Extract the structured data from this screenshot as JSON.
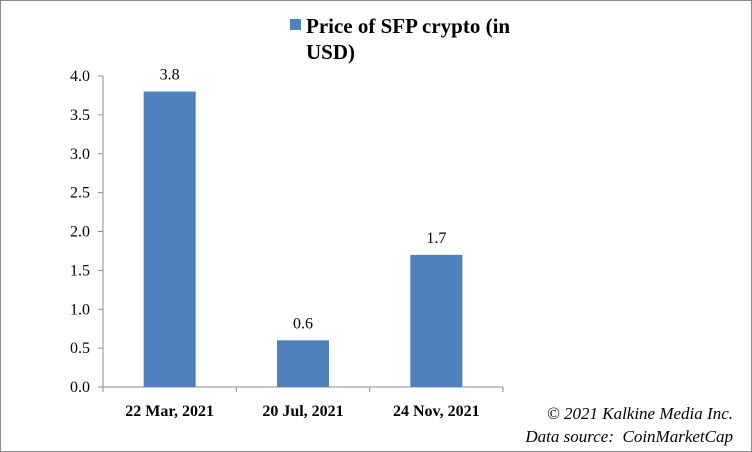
{
  "chart_data": {
    "type": "bar",
    "title": "",
    "xlabel": "",
    "ylabel": "",
    "categories": [
      "22 Mar, 2021",
      "20 Jul, 2021",
      "24 Nov, 2021"
    ],
    "series": [
      {
        "name": "Price of SFP crypto (in USD)",
        "values": [
          3.8,
          0.6,
          1.7
        ],
        "data_labels": [
          "3.8",
          "0.6",
          "1.7"
        ],
        "color": "#4f81bd"
      }
    ],
    "ylim": [
      0,
      4.0
    ],
    "yticks": [
      "0.0",
      "0.5",
      "1.0",
      "1.5",
      "2.0",
      "2.5",
      "3.0",
      "3.5",
      "4.0"
    ],
    "grid": false,
    "legend_position": "top"
  },
  "legend": {
    "line1": "Price of SFP crypto (in",
    "line2": "USD)"
  },
  "credits": {
    "copyright": "© 2021 Kalkine Media Inc.",
    "source": "Data source:  CoinMarketCap"
  },
  "colors": {
    "bar": "#4f81bd",
    "axis": "#8c8c8c"
  }
}
